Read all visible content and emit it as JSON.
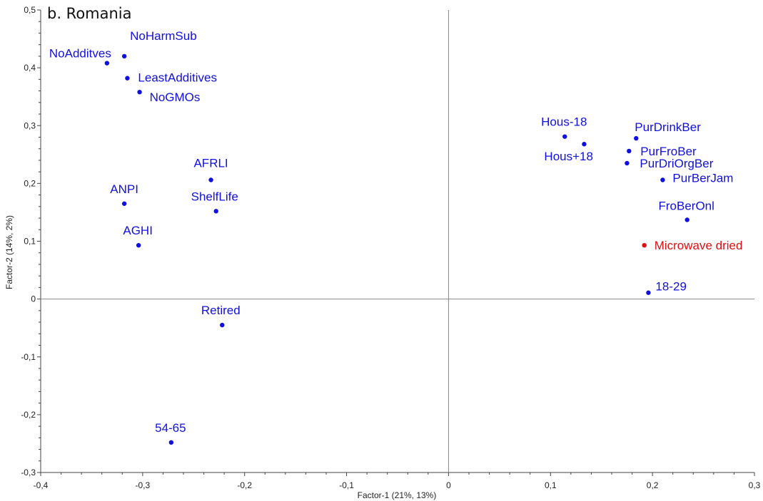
{
  "chart_data": {
    "type": "scatter",
    "title": "b. Romania",
    "xlabel": "Factor-1 (21%, 13%)",
    "ylabel": "Factor-2 (14%, 2%)",
    "xlim": [
      -0.4,
      0.3
    ],
    "ylim": [
      -0.3,
      0.5
    ],
    "xticks": [
      "-0,4",
      "-0,3",
      "-0,2",
      "-0,1",
      "0",
      "0,1",
      "0,2",
      "0,3"
    ],
    "yticks": [
      "-0,3",
      "-0,2",
      "-0,1",
      "0",
      "0,1",
      "0,2",
      "0,3",
      "0,4",
      "0,5"
    ],
    "grid": false,
    "colors": {
      "variables": "#1010e0",
      "highlight": "#e01010",
      "axes": "#444444",
      "origin_lines": "#888888"
    },
    "points": [
      {
        "label": "NoAdditves",
        "x": -0.335,
        "y": 0.408,
        "color": "variables"
      },
      {
        "label": "NoHarmSub",
        "x": -0.318,
        "y": 0.42,
        "color": "variables"
      },
      {
        "label": "LeastAdditives",
        "x": -0.315,
        "y": 0.382,
        "color": "variables"
      },
      {
        "label": "NoGMOs",
        "x": -0.303,
        "y": 0.358,
        "color": "variables"
      },
      {
        "label": "AFRLI",
        "x": -0.233,
        "y": 0.206,
        "color": "variables"
      },
      {
        "label": "ShelfLife",
        "x": -0.228,
        "y": 0.152,
        "color": "variables"
      },
      {
        "label": "ANPI",
        "x": -0.318,
        "y": 0.165,
        "color": "variables"
      },
      {
        "label": "AGHI",
        "x": -0.304,
        "y": 0.093,
        "color": "variables"
      },
      {
        "label": "Retired",
        "x": -0.222,
        "y": -0.045,
        "color": "variables"
      },
      {
        "label": "54-65",
        "x": -0.272,
        "y": -0.248,
        "color": "variables"
      },
      {
        "label": "Hous-18",
        "x": 0.114,
        "y": 0.281,
        "color": "variables"
      },
      {
        "label": "Hous+18",
        "x": 0.133,
        "y": 0.268,
        "color": "variables"
      },
      {
        "label": "PurDrinkBer",
        "x": 0.184,
        "y": 0.278,
        "color": "variables"
      },
      {
        "label": "PurFroBer",
        "x": 0.177,
        "y": 0.256,
        "color": "variables"
      },
      {
        "label": "PurDriOrgBer",
        "x": 0.175,
        "y": 0.235,
        "color": "variables"
      },
      {
        "label": "PurBerJam",
        "x": 0.21,
        "y": 0.206,
        "color": "variables"
      },
      {
        "label": "FroBerOnl",
        "x": 0.234,
        "y": 0.137,
        "color": "variables"
      },
      {
        "label": "Microwave dried",
        "x": 0.192,
        "y": 0.093,
        "color": "highlight"
      },
      {
        "label": "18-29",
        "x": 0.196,
        "y": 0.011,
        "color": "variables"
      }
    ]
  }
}
